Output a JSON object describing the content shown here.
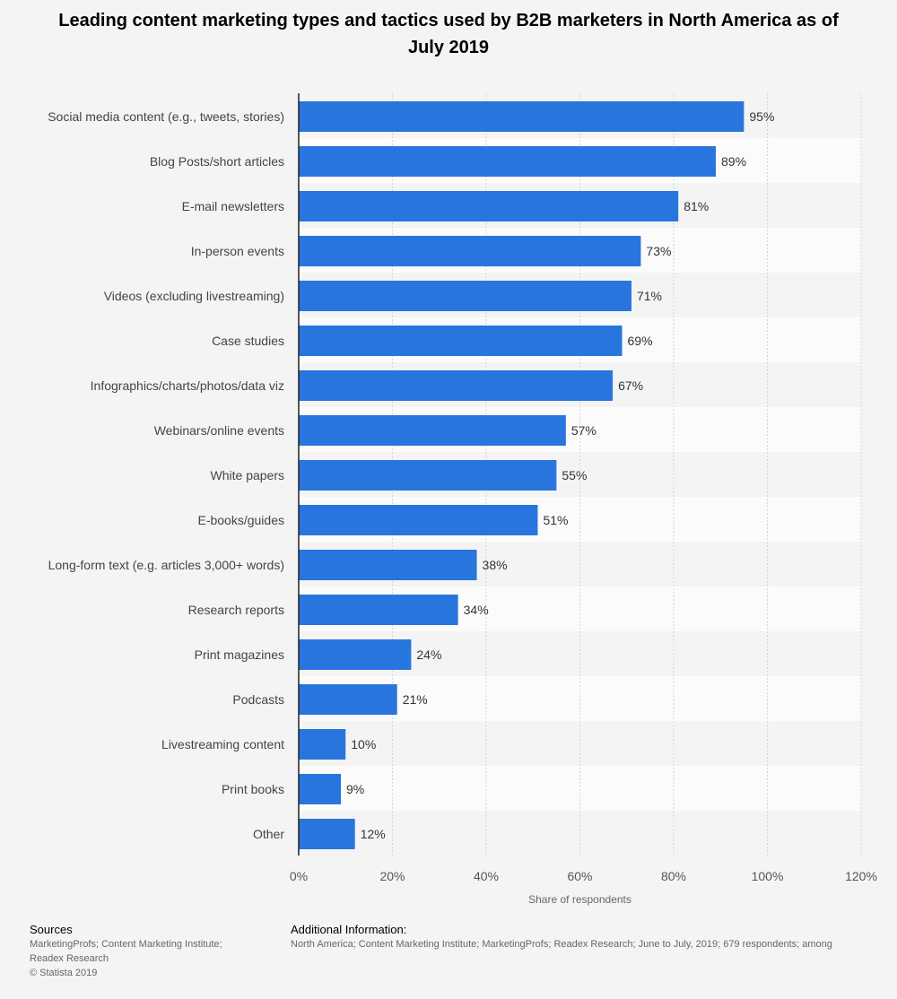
{
  "chart_data": {
    "type": "bar",
    "orientation": "horizontal",
    "title": "Leading content marketing types and tactics used by B2B marketers in North America as of July 2019",
    "xlabel": "Share of respondents",
    "ylabel": "",
    "categories": [
      "Social media content (e.g., tweets, stories)",
      "Blog Posts/short articles",
      "E-mail newsletters",
      "In-person events",
      "Videos (excluding livestreaming)",
      "Case studies",
      "Infographics/charts/photos/data viz",
      "Webinars/online events",
      "White papers",
      "E-books/guides",
      "Long-form text (e.g. articles 3,000+ words)",
      "Research reports",
      "Print magazines",
      "Podcasts",
      "Livestreaming content",
      "Print books",
      "Other"
    ],
    "values": [
      95,
      89,
      81,
      73,
      71,
      69,
      67,
      57,
      55,
      51,
      38,
      34,
      24,
      21,
      10,
      9,
      12
    ],
    "value_suffix": "%",
    "xlim": [
      0,
      120
    ],
    "xticks": [
      0,
      20,
      40,
      60,
      80,
      100,
      120
    ],
    "xtick_labels": [
      "0%",
      "20%",
      "40%",
      "60%",
      "80%",
      "100%",
      "120%"
    ],
    "grid": true,
    "bar_color": "#2876dd",
    "legend": "none"
  },
  "footer": {
    "sources_heading": "Sources",
    "sources_lines": [
      "MarketingProfs; Content Marketing Institute;",
      "Readex Research",
      "© Statista 2019"
    ],
    "additional_heading": "Additional Information:",
    "additional_lines": [
      "North America; Content Marketing Institute; MarketingProfs; Readex Research; June to July, 2019; 679 respondents; among"
    ]
  }
}
